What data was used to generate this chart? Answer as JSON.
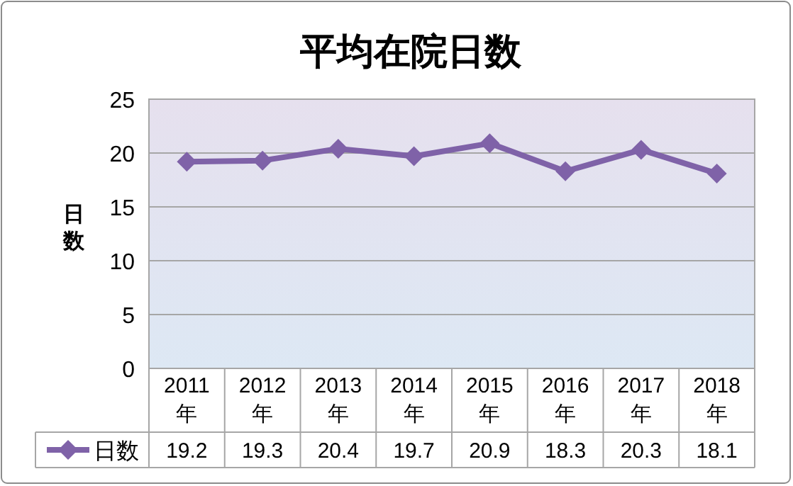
{
  "chart_data": {
    "type": "line",
    "title": "平均在院日数",
    "ylabel": "日数",
    "categories": [
      "2011\n年",
      "2012\n年",
      "2013\n年",
      "2014\n年",
      "2015\n年",
      "2016\n年",
      "2017\n年",
      "2018\n年"
    ],
    "series": [
      {
        "name": "日数",
        "color": "#7f62a8",
        "values": [
          19.2,
          19.3,
          20.4,
          19.7,
          20.9,
          18.3,
          20.3,
          18.1
        ]
      }
    ],
    "ylim": [
      0,
      25
    ],
    "yticks": [
      0,
      5,
      10,
      15,
      20,
      25
    ],
    "grid": "y",
    "legend": "bottom",
    "marker": "diamond",
    "line_style": "solid",
    "data_labels": true
  }
}
